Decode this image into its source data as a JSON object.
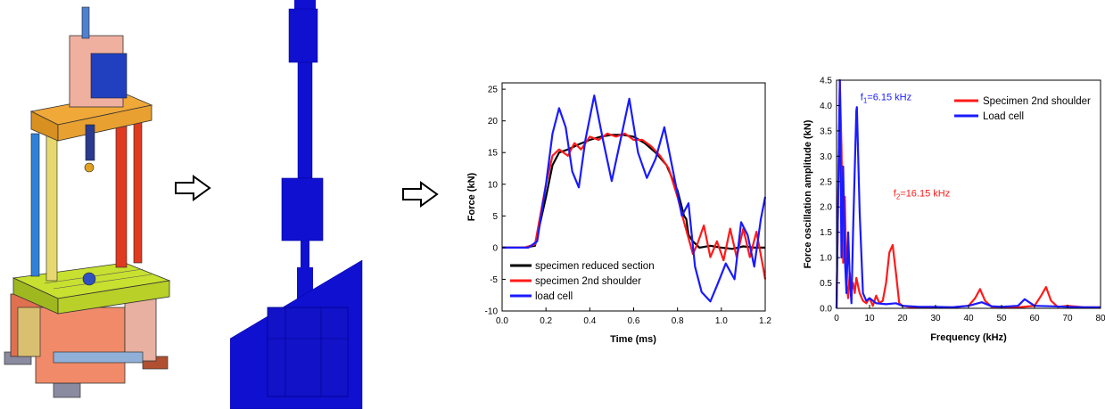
{
  "colors": {
    "black": "#000000",
    "red": "#ff1a1a",
    "blue": "#1a1aff",
    "fem_blue": "#1010d0"
  },
  "images": {
    "machine": "drop-weight-tensile-machine-cad",
    "fem": "finite-element-mesh-specimen"
  },
  "icons": {
    "arrow1": "right-arrow-icon",
    "arrow2": "right-arrow-icon"
  },
  "chart_data": [
    {
      "type": "line",
      "xlabel": "Time (ms)",
      "ylabel": "Force (kN)",
      "xlim": [
        0,
        1.2
      ],
      "ylim": [
        -10,
        26
      ],
      "xticks": [
        "0.0",
        "0.2",
        "0.4",
        "0.6",
        "0.8",
        "1.0",
        "1.2"
      ],
      "yticks": [
        "-10",
        "-5",
        "0",
        "5",
        "10",
        "15",
        "20",
        "25"
      ],
      "legend_position": "bottom-left",
      "series": [
        {
          "name": "specimen reduced section",
          "color": "#000000",
          "x": [
            0,
            0.1,
            0.15,
            0.2,
            0.23,
            0.26,
            0.3,
            0.35,
            0.4,
            0.45,
            0.5,
            0.55,
            0.6,
            0.65,
            0.7,
            0.75,
            0.8,
            0.83,
            0.84,
            0.85,
            0.87,
            0.9,
            0.95,
            1.0,
            1.05,
            1.1,
            1.15,
            1.2
          ],
          "y": [
            0,
            0,
            0.3,
            8,
            13,
            15,
            15.5,
            16.3,
            17,
            17.5,
            17.8,
            17.8,
            17.5,
            16.5,
            15,
            13,
            9,
            5,
            4.5,
            2,
            1,
            0,
            0.3,
            0,
            -0.2,
            0.2,
            0,
            0
          ]
        },
        {
          "name": "specimen 2nd shoulder",
          "color": "#ff1a1a",
          "x": [
            0,
            0.1,
            0.15,
            0.2,
            0.23,
            0.26,
            0.3,
            0.33,
            0.36,
            0.4,
            0.44,
            0.48,
            0.52,
            0.56,
            0.6,
            0.64,
            0.68,
            0.72,
            0.76,
            0.8,
            0.83,
            0.85,
            0.87,
            0.89,
            0.92,
            0.95,
            0.98,
            1.01,
            1.04,
            1.07,
            1.1,
            1.13,
            1.16,
            1.19,
            1.2
          ],
          "y": [
            0,
            0,
            0.5,
            10,
            14.5,
            15.5,
            14.5,
            16.5,
            15.5,
            17.5,
            17,
            18,
            17.5,
            18,
            17,
            17,
            16,
            14.5,
            12.5,
            8,
            4,
            1.5,
            -1,
            0.5,
            3.5,
            -1.5,
            1,
            -2,
            3,
            -1.5,
            3,
            -1.5,
            2.5,
            -3,
            -5
          ]
        },
        {
          "name": "load cell",
          "color": "#1a1aff",
          "x": [
            0,
            0.12,
            0.16,
            0.2,
            0.23,
            0.26,
            0.29,
            0.32,
            0.35,
            0.38,
            0.42,
            0.46,
            0.5,
            0.54,
            0.58,
            0.62,
            0.66,
            0.7,
            0.74,
            0.78,
            0.82,
            0.85,
            0.88,
            0.91,
            0.95,
            0.98,
            1.02,
            1.06,
            1.09,
            1.12,
            1.15,
            1.18,
            1.2
          ],
          "y": [
            0,
            0,
            1,
            10,
            18,
            22,
            19,
            12,
            9.5,
            17,
            24,
            17,
            10.5,
            17,
            23.5,
            15,
            11,
            14,
            19,
            12,
            5,
            7,
            -3,
            -7,
            -8.5,
            -6,
            -2.5,
            -5,
            4,
            2,
            -3,
            4.5,
            8
          ]
        }
      ]
    },
    {
      "type": "line",
      "xlabel": "Frequency (kHz)",
      "ylabel": "Force oscillation amplitude (kN)",
      "xlim": [
        0,
        80
      ],
      "ylim": [
        0,
        4.5
      ],
      "xticks": [
        "0",
        "10",
        "20",
        "30",
        "40",
        "50",
        "60",
        "70",
        "80"
      ],
      "yticks": [
        "0.0",
        "0.5",
        "1.0",
        "1.5",
        "2.0",
        "2.5",
        "3.0",
        "3.5",
        "4.0",
        "4.5"
      ],
      "legend_position": "top-right",
      "annotations": [
        {
          "base": "f",
          "sub": "1",
          "rest": "=6.15 kHz",
          "color": "#1a1aff",
          "x": 6.15,
          "y": 4.0
        },
        {
          "base": "f",
          "sub": "2",
          "rest": "=16.15 kHz",
          "color": "#ff1a1a",
          "x": 16.15,
          "y": 2.1
        }
      ],
      "series": [
        {
          "name": "Specimen 2nd shoulder",
          "color": "#ff1a1a",
          "x": [
            0,
            1,
            1.5,
            2,
            2.5,
            3,
            3.5,
            4,
            4.5,
            5,
            5.5,
            6,
            7,
            8,
            9,
            10,
            11,
            12,
            13,
            14,
            15,
            16,
            17,
            18,
            19,
            20,
            22,
            25,
            30,
            35,
            40,
            42,
            43.5,
            45,
            47,
            50,
            55,
            60,
            62,
            63.5,
            65,
            67,
            70,
            75,
            80
          ],
          "y": [
            0,
            4.5,
            3.2,
            0.9,
            2.2,
            0.5,
            0.2,
            0.7,
            0.35,
            0.5,
            0.3,
            0.6,
            0.3,
            0.15,
            0.1,
            0.2,
            0.05,
            0.25,
            0.1,
            0.15,
            0.5,
            1.1,
            1.25,
            0.7,
            0.1,
            0.05,
            0.03,
            0.02,
            0.02,
            0.02,
            0.05,
            0.2,
            0.38,
            0.15,
            0.03,
            0.03,
            0.02,
            0.05,
            0.25,
            0.42,
            0.15,
            0.03,
            0.05,
            0.02,
            0.02
          ]
        },
        {
          "name": "Load cell",
          "color": "#1a1aff",
          "x": [
            0,
            1,
            1.5,
            2,
            2.5,
            3,
            3.5,
            4,
            4.5,
            5,
            6,
            6.15,
            7,
            8,
            9,
            10,
            12,
            15,
            18,
            20,
            25,
            30,
            35,
            40,
            44,
            47,
            50,
            55,
            57,
            60,
            65,
            70,
            75,
            80
          ],
          "y": [
            0,
            4.5,
            1.0,
            2.8,
            1.0,
            0.3,
            1.5,
            0.6,
            0.1,
            1.5,
            3.9,
            3.97,
            1.9,
            0.3,
            0.15,
            0.2,
            0.1,
            0.08,
            0.1,
            0.05,
            0.03,
            0.03,
            0.02,
            0.05,
            0.12,
            0.04,
            0.03,
            0.05,
            0.18,
            0.05,
            0.04,
            0.03,
            0.02,
            0.02
          ]
        }
      ]
    }
  ]
}
